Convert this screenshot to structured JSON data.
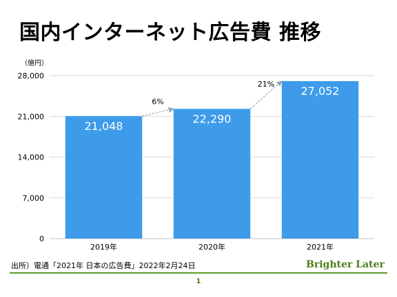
{
  "title": "国内インターネット広告費 推移",
  "footer": {
    "source": "出所）電通「2021年 日本の広告費」2022年2月24日",
    "brand": "Brighter Later",
    "page_number": "1"
  },
  "colors": {
    "bar": "#3d9bea",
    "grid": "#d9d9d9",
    "arrow": "#9aa5b4",
    "brand": "#4a7f1c",
    "rule": "#5a9b2a"
  },
  "chart_data": {
    "type": "bar",
    "unit_label": "（億円）",
    "categories": [
      "2019年",
      "2020年",
      "2021年"
    ],
    "values": [
      21048,
      22290,
      27052
    ],
    "value_labels": [
      "21,048",
      "22,290",
      "27,052"
    ],
    "yticks": [
      0,
      7000,
      14000,
      21000,
      28000
    ],
    "ytick_labels": [
      "0",
      "7,000",
      "14,000",
      "21,000",
      "28,000"
    ],
    "ylim": [
      0,
      28000
    ],
    "growth_annotations": [
      {
        "from": 0,
        "to": 1,
        "label": "6%"
      },
      {
        "from": 1,
        "to": 2,
        "label": "21%"
      }
    ],
    "grid": true,
    "legend": "none"
  }
}
